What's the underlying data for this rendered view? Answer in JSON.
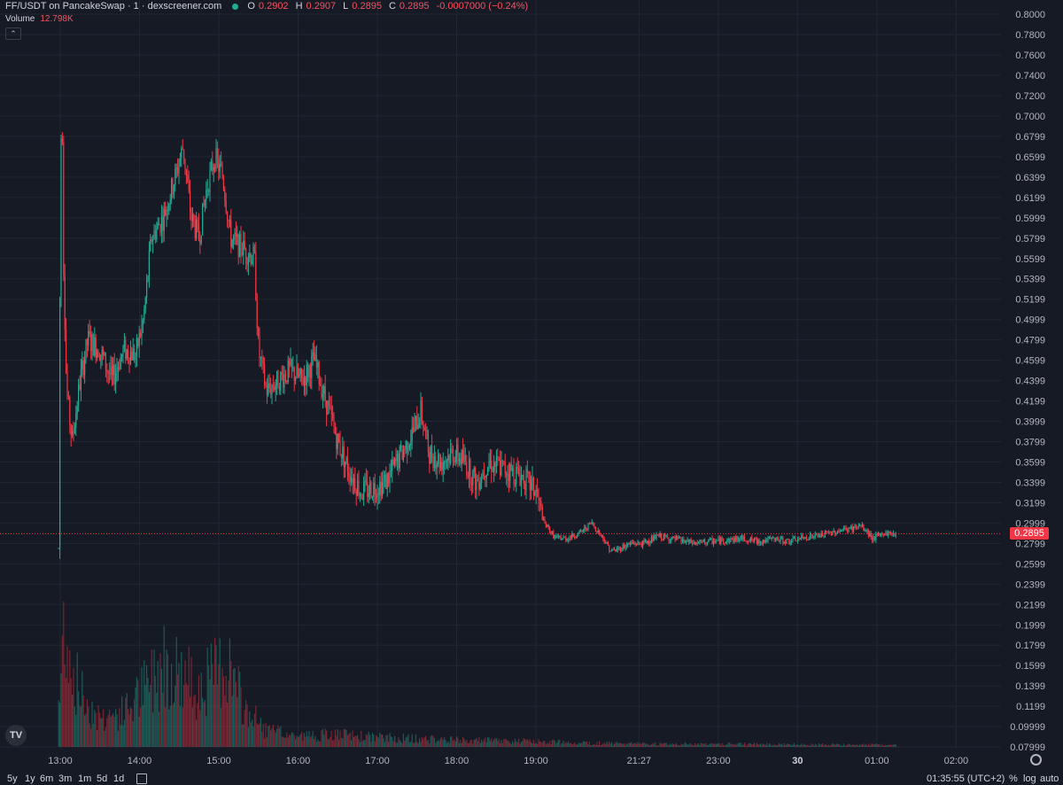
{
  "header": {
    "pair_title": "FF/USDT on PancakeSwap · 1 · dexscreener.com",
    "ohlc": [
      {
        "key": "O",
        "value": "0.2902"
      },
      {
        "key": "H",
        "value": "0.2907"
      },
      {
        "key": "L",
        "value": "0.2895"
      },
      {
        "key": "C",
        "value": "0.2895"
      }
    ],
    "change": "-0.0007000 (−0.24%)",
    "volume_label": "Volume",
    "volume_value": "12.798K"
  },
  "timeframes": [
    "5y",
    "1y",
    "6m",
    "3m",
    "1m",
    "5d",
    "1d"
  ],
  "clock": "01:35:55 (UTC+2)",
  "options": [
    "%",
    "log",
    "auto"
  ],
  "icons": [
    "collapse-chevron-icon",
    "tradingview-logo-icon",
    "calendar-range-icon",
    "settings-gear-icon",
    "status-dot-icon"
  ],
  "colors": {
    "background": "#161a25",
    "up": "#22ab94",
    "down": "#f23645",
    "grid": "#222632",
    "text": "#b2b5be"
  },
  "current_price_label": "0.2895",
  "chart_data": {
    "type": "candlestick",
    "title": "FF/USDT on PancakeSwap · 1 · dexscreener.com",
    "interval": "1 minute",
    "y_tick_labels": [
      "0.8000",
      "0.7800",
      "0.7600",
      "0.7400",
      "0.7200",
      "0.7000",
      "0.6799",
      "0.6599",
      "0.6399",
      "0.6199",
      "0.5999",
      "0.5799",
      "0.5599",
      "0.5399",
      "0.5199",
      "0.4999",
      "0.4799",
      "0.4599",
      "0.4399",
      "0.4199",
      "0.3999",
      "0.3799",
      "0.3599",
      "0.3399",
      "0.3199",
      "0.2999",
      "0.2799",
      "0.2599",
      "0.2399",
      "0.2199",
      "0.1999",
      "0.1799",
      "0.1599",
      "0.1399",
      "0.1199",
      "0.09999",
      "0.07999"
    ],
    "ylim": [
      0.0735,
      0.8095
    ],
    "x_tick_labels": [
      {
        "label": "13:00",
        "hour": 13
      },
      {
        "label": "14:00",
        "hour": 14
      },
      {
        "label": "15:00",
        "hour": 15
      },
      {
        "label": "16:00",
        "hour": 16
      },
      {
        "label": "17:00",
        "hour": 17
      },
      {
        "label": "18:00",
        "hour": 18
      },
      {
        "label": "19:00",
        "hour": 19
      },
      {
        "label": "21:27",
        "hour": 20.3
      },
      {
        "label": "23:00",
        "hour": 21.3
      },
      {
        "label": "30",
        "hour": 22.3,
        "bold": true
      },
      {
        "label": "01:00",
        "hour": 23.3
      },
      {
        "label": "02:00",
        "hour": 24.3
      }
    ],
    "series": [
      {
        "hour": 12.98,
        "price": 0.275
      },
      {
        "hour": 13.0,
        "price": 0.59
      },
      {
        "hour": 13.02,
        "price": 0.75
      },
      {
        "hour": 13.04,
        "price": 0.56
      },
      {
        "hour": 13.08,
        "price": 0.43
      },
      {
        "hour": 13.15,
        "price": 0.38
      },
      {
        "hour": 13.25,
        "price": 0.44
      },
      {
        "hour": 13.35,
        "price": 0.48
      },
      {
        "hour": 13.5,
        "price": 0.47
      },
      {
        "hour": 13.65,
        "price": 0.44
      },
      {
        "hour": 13.8,
        "price": 0.47
      },
      {
        "hour": 13.95,
        "price": 0.465
      },
      {
        "hour": 14.05,
        "price": 0.5
      },
      {
        "hour": 14.15,
        "price": 0.58
      },
      {
        "hour": 14.3,
        "price": 0.6
      },
      {
        "hour": 14.45,
        "price": 0.64
      },
      {
        "hour": 14.55,
        "price": 0.67
      },
      {
        "hour": 14.65,
        "price": 0.6
      },
      {
        "hour": 14.75,
        "price": 0.58
      },
      {
        "hour": 14.85,
        "price": 0.63
      },
      {
        "hour": 14.95,
        "price": 0.66
      },
      {
        "hour": 15.05,
        "price": 0.64
      },
      {
        "hour": 15.15,
        "price": 0.58
      },
      {
        "hour": 15.3,
        "price": 0.57
      },
      {
        "hour": 15.45,
        "price": 0.56
      },
      {
        "hour": 15.5,
        "price": 0.47
      },
      {
        "hour": 15.6,
        "price": 0.43
      },
      {
        "hour": 15.75,
        "price": 0.44
      },
      {
        "hour": 15.9,
        "price": 0.45
      },
      {
        "hour": 16.05,
        "price": 0.44
      },
      {
        "hour": 16.2,
        "price": 0.46
      },
      {
        "hour": 16.35,
        "price": 0.42
      },
      {
        "hour": 16.5,
        "price": 0.38
      },
      {
        "hour": 16.65,
        "price": 0.35
      },
      {
        "hour": 16.8,
        "price": 0.33
      },
      {
        "hour": 16.95,
        "price": 0.335
      },
      {
        "hour": 17.1,
        "price": 0.34
      },
      {
        "hour": 17.25,
        "price": 0.36
      },
      {
        "hour": 17.45,
        "price": 0.39
      },
      {
        "hour": 17.55,
        "price": 0.41
      },
      {
        "hour": 17.65,
        "price": 0.37
      },
      {
        "hour": 17.8,
        "price": 0.36
      },
      {
        "hour": 17.95,
        "price": 0.37
      },
      {
        "hour": 18.1,
        "price": 0.36
      },
      {
        "hour": 18.25,
        "price": 0.34
      },
      {
        "hour": 18.4,
        "price": 0.36
      },
      {
        "hour": 18.55,
        "price": 0.355
      },
      {
        "hour": 18.7,
        "price": 0.35
      },
      {
        "hour": 18.85,
        "price": 0.345
      },
      {
        "hour": 19.0,
        "price": 0.33
      },
      {
        "hour": 19.1,
        "price": 0.3
      },
      {
        "hour": 19.25,
        "price": 0.285
      },
      {
        "hour": 19.4,
        "price": 0.285
      },
      {
        "hour": 19.55,
        "price": 0.29
      },
      {
        "hour": 19.7,
        "price": 0.3
      },
      {
        "hour": 19.85,
        "price": 0.285
      },
      {
        "hour": 19.95,
        "price": 0.272
      },
      {
        "hour": 20.05,
        "price": 0.275
      },
      {
        "hour": 20.2,
        "price": 0.28
      },
      {
        "hour": 20.35,
        "price": 0.28
      },
      {
        "hour": 20.55,
        "price": 0.287
      },
      {
        "hour": 20.8,
        "price": 0.283
      },
      {
        "hour": 21.0,
        "price": 0.28
      },
      {
        "hour": 21.2,
        "price": 0.282
      },
      {
        "hour": 21.4,
        "price": 0.283
      },
      {
        "hour": 21.6,
        "price": 0.285
      },
      {
        "hour": 21.8,
        "price": 0.282
      },
      {
        "hour": 22.0,
        "price": 0.284
      },
      {
        "hour": 22.2,
        "price": 0.282
      },
      {
        "hour": 22.4,
        "price": 0.286
      },
      {
        "hour": 22.6,
        "price": 0.288
      },
      {
        "hour": 22.8,
        "price": 0.292
      },
      {
        "hour": 23.0,
        "price": 0.295
      },
      {
        "hour": 23.1,
        "price": 0.297
      },
      {
        "hour": 23.25,
        "price": 0.285
      },
      {
        "hour": 23.4,
        "price": 0.29
      },
      {
        "hour": 23.55,
        "price": 0.2895
      }
    ],
    "volume_ylim": [
      0,
      1.0
    ],
    "volume_profile": [
      {
        "hour": 13.0,
        "level": 0.35
      },
      {
        "hour": 13.05,
        "level": 1.0
      },
      {
        "hour": 13.15,
        "level": 0.55
      },
      {
        "hour": 13.3,
        "level": 0.35
      },
      {
        "hour": 13.5,
        "level": 0.22
      },
      {
        "hour": 13.8,
        "level": 0.25
      },
      {
        "hour": 14.1,
        "level": 0.45
      },
      {
        "hour": 14.3,
        "level": 0.65
      },
      {
        "hour": 14.5,
        "level": 0.55
      },
      {
        "hour": 14.7,
        "level": 0.45
      },
      {
        "hour": 14.9,
        "level": 0.5
      },
      {
        "hour": 15.1,
        "level": 0.65
      },
      {
        "hour": 15.3,
        "level": 0.3
      },
      {
        "hour": 15.6,
        "level": 0.12
      },
      {
        "hour": 16.0,
        "level": 0.08
      },
      {
        "hour": 16.5,
        "level": 0.09
      },
      {
        "hour": 17.0,
        "level": 0.07
      },
      {
        "hour": 17.5,
        "level": 0.06
      },
      {
        "hour": 18.0,
        "level": 0.05
      },
      {
        "hour": 19.0,
        "level": 0.04
      },
      {
        "hour": 20.0,
        "level": 0.025
      },
      {
        "hour": 22.0,
        "level": 0.02
      },
      {
        "hour": 23.6,
        "level": 0.015
      }
    ],
    "last_price": 0.2895,
    "grid": true
  }
}
